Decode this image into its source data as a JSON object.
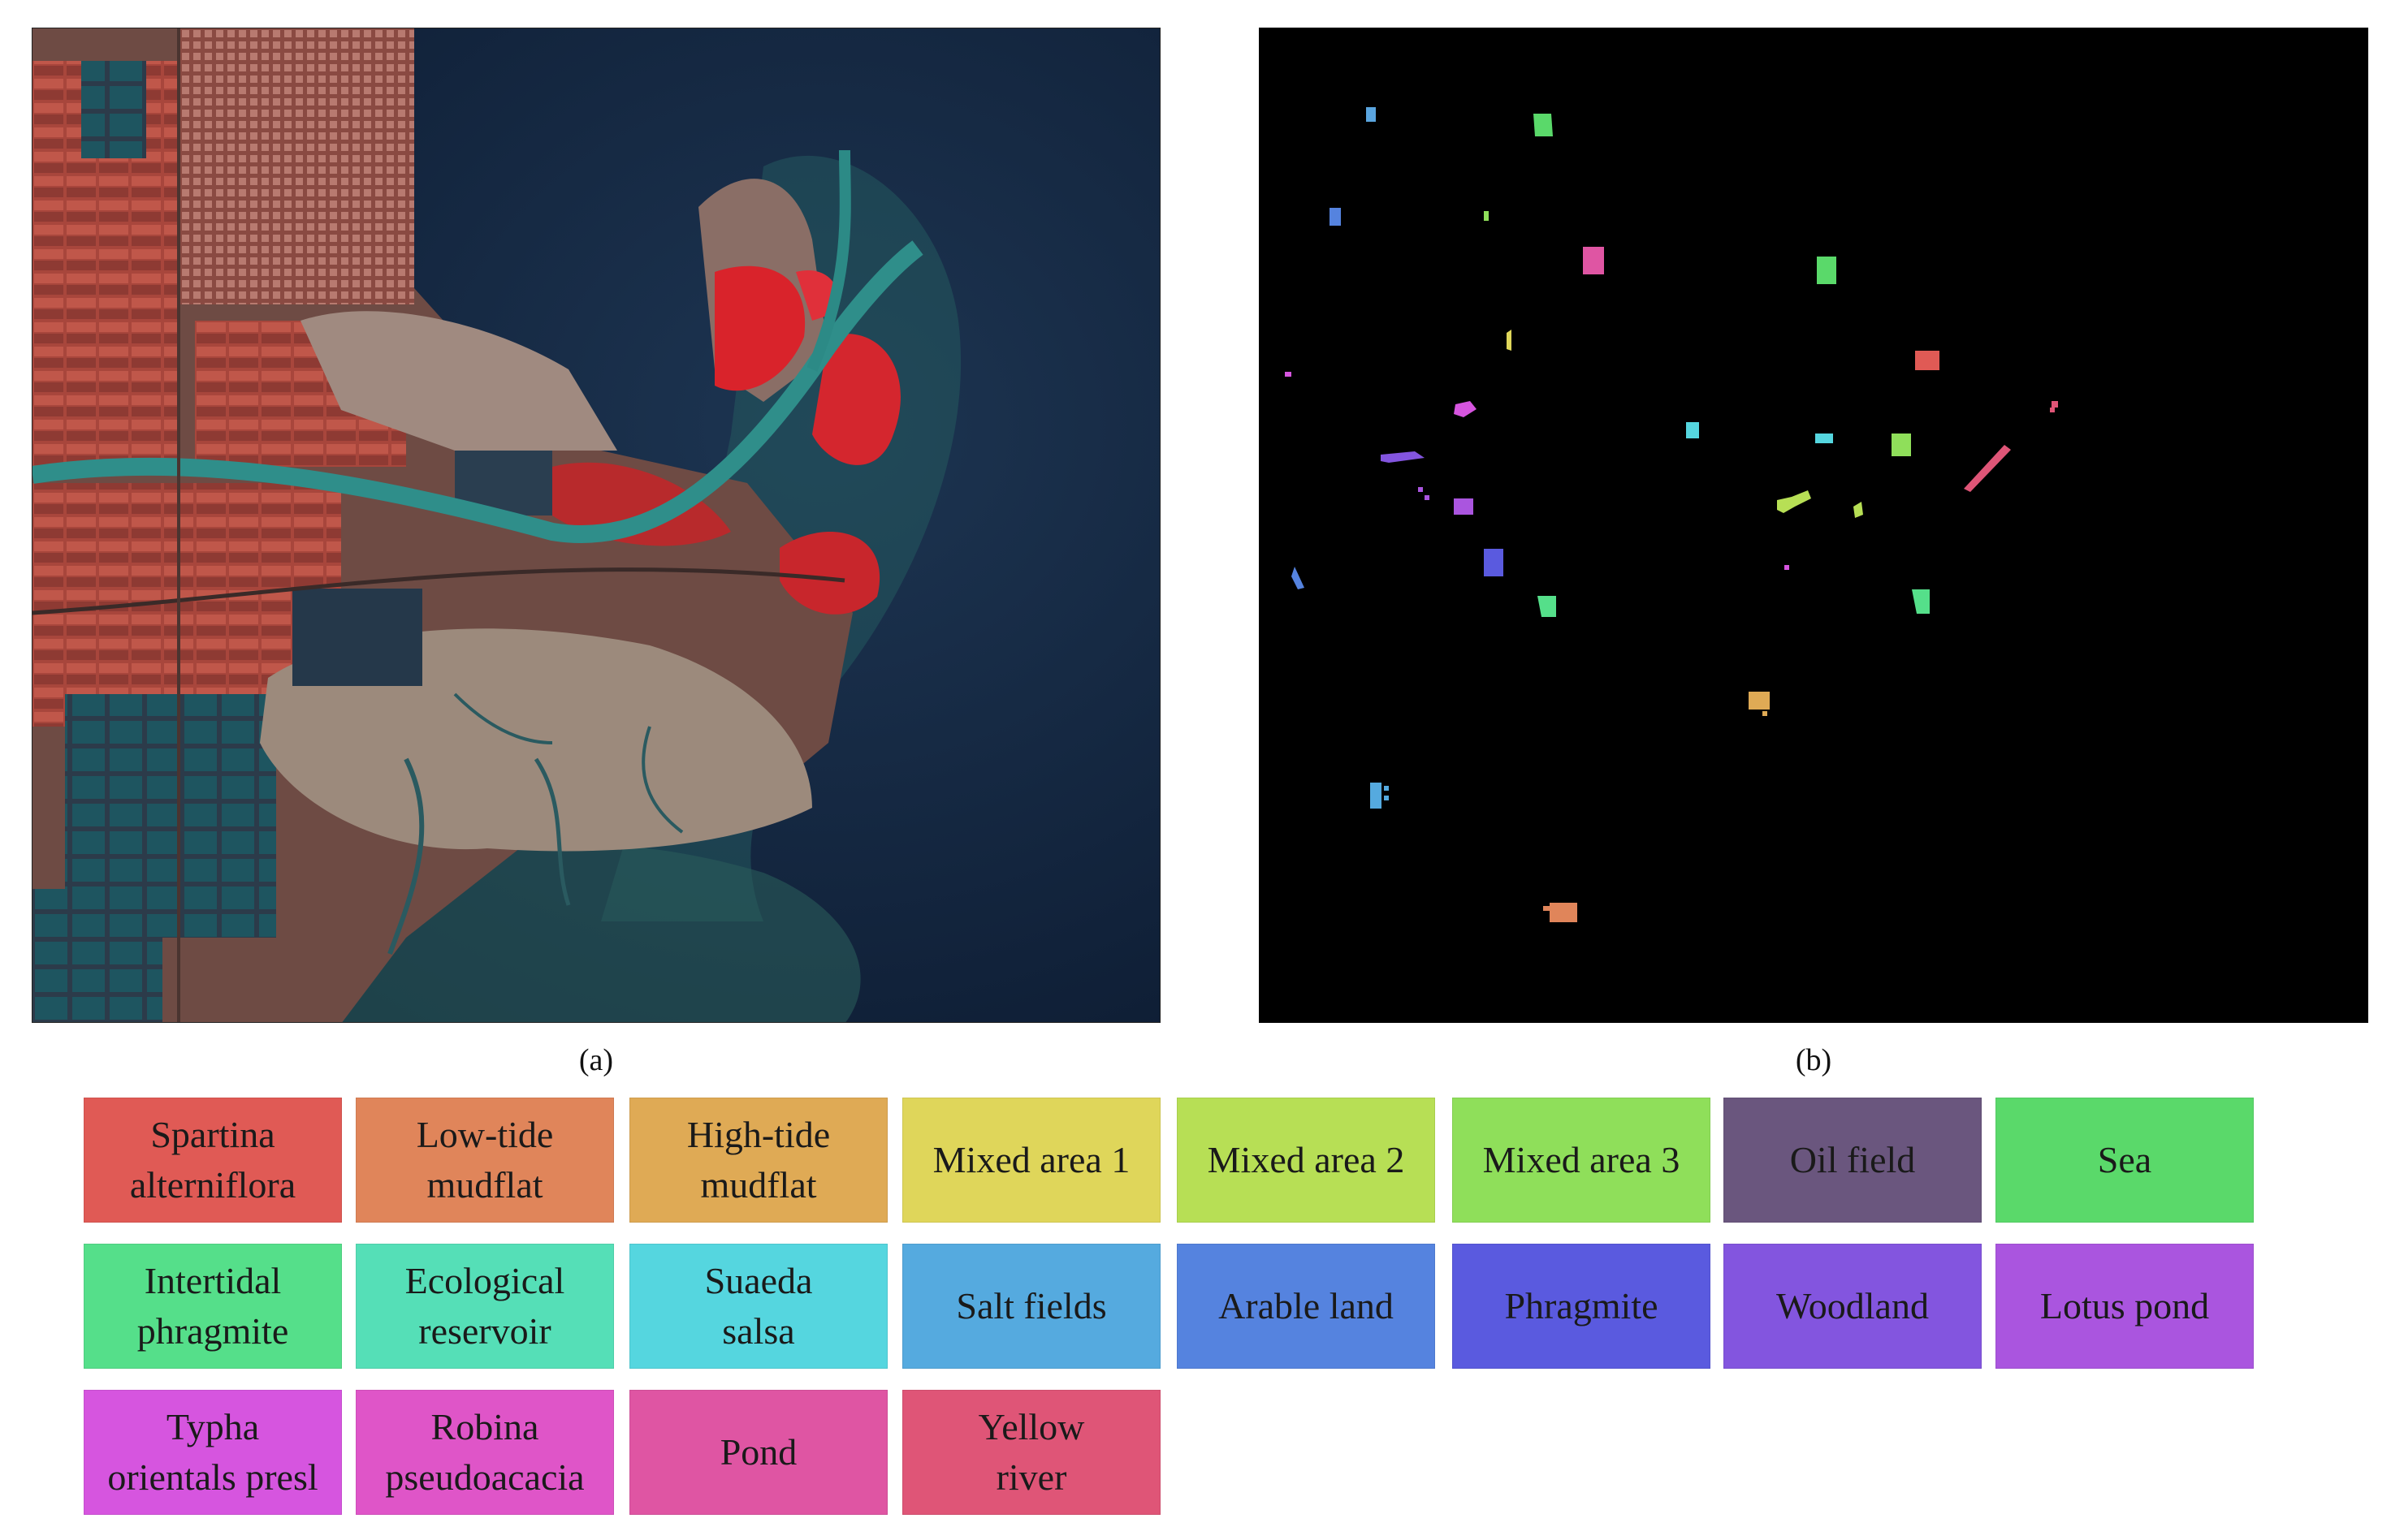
{
  "captions": {
    "a": "(a)",
    "b": "(b)"
  },
  "legend": [
    {
      "label": "Spartina alterniflora",
      "color": "#e05a55"
    },
    {
      "label": "Low-tide mudflat",
      "color": "#e0855a"
    },
    {
      "label": "High-tide mudflat",
      "color": "#dfaa55"
    },
    {
      "label": "Mixed area 1",
      "color": "#dfd65a"
    },
    {
      "label": "Mixed area 2",
      "color": "#b7df55"
    },
    {
      "label": "Mixed area 3",
      "color": "#8fdf5a"
    },
    {
      "label": "Oil field",
      "color": "#6a567e"
    },
    {
      "label": "Sea",
      "color": "#5ad96a"
    },
    {
      "label": "Intertidal phragmite",
      "color": "#55df8a"
    },
    {
      "label": "Ecological reservoir",
      "color": "#55dfb7"
    },
    {
      "label": "Suaeda salsa",
      "color": "#55d6df"
    },
    {
      "label": "Salt fields",
      "color": "#55aadf"
    },
    {
      "label": "Arable land",
      "color": "#5583df"
    },
    {
      "label": "Phragmite",
      "color": "#5a5adf"
    },
    {
      "label": "Woodland",
      "color": "#8355df"
    },
    {
      "label": "Lotus pond",
      "color": "#aa55df"
    },
    {
      "label": "Typha orientals presl",
      "color": "#d655df"
    },
    {
      "label": "Robina pseudoacacia",
      "color": "#df55c8"
    },
    {
      "label": "Pond",
      "color": "#df55a3"
    },
    {
      "label": "Yellow river",
      "color": "#df5577"
    }
  ]
}
